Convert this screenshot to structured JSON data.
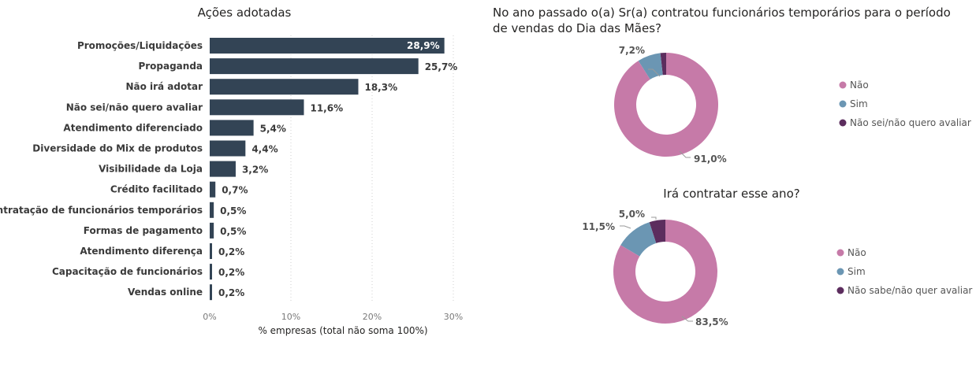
{
  "chart_data": [
    {
      "type": "bar",
      "orientation": "horizontal",
      "title": "Ações adotadas",
      "xlabel": "% empresas (total não soma 100%)",
      "xlim": [
        0,
        30
      ],
      "xticks": [
        "0%",
        "10%",
        "20%",
        "30%"
      ],
      "grid": true,
      "color": "#334455",
      "categories": [
        "Promoções/Liquidações",
        "Propaganda",
        "Não irá adotar",
        "Não sei/não quero avaliar",
        "Atendimento diferenciado",
        "Diversidade do Mix de produtos",
        "Visibilidade da Loja",
        "Crédito facilitado",
        "Contratação de funcionários temporários",
        "Formas de pagamento",
        "Atendimento diferença",
        "Capacitação de funcionários",
        "Vendas online"
      ],
      "values": [
        28.9,
        25.7,
        18.3,
        11.6,
        5.4,
        4.4,
        3.2,
        0.7,
        0.5,
        0.5,
        0.2,
        0.2,
        0.2
      ],
      "value_labels": [
        "28,9%",
        "25,7%",
        "18,3%",
        "11,6%",
        "5,4%",
        "4,4%",
        "3,2%",
        "0,7%",
        "0,5%",
        "0,5%",
        "0,2%",
        "0,2%",
        "0,2%"
      ]
    },
    {
      "type": "pie",
      "donut": true,
      "title": "No ano passado o(a) Sr(a) contratou funcionários temporários para o período de vendas do Dia das Mães?",
      "title_lines": [
        "No ano passado o(a) Sr(a) contratou funcionários temporários para o período",
        "de vendas do Dia das Mães?"
      ],
      "labels": [
        "Não",
        "Sim",
        "Não sei/não quero avaliar"
      ],
      "values": [
        91.0,
        7.2,
        1.8
      ],
      "value_labels": [
        "91,0%",
        "7,2%",
        ""
      ],
      "colors": [
        "#c67aa8",
        "#6b96b3",
        "#5c2d5e"
      ],
      "legend_position": "right"
    },
    {
      "type": "pie",
      "donut": true,
      "title": "Irá contratar esse ano?",
      "labels": [
        "Não",
        "Sim",
        "Não sabe/não quer avaliar"
      ],
      "values": [
        83.5,
        11.5,
        5.0
      ],
      "value_labels": [
        "83,5%",
        "11,5%",
        "5,0%"
      ],
      "colors": [
        "#c67aa8",
        "#6b96b3",
        "#5c2d5e"
      ],
      "legend_position": "right"
    }
  ]
}
